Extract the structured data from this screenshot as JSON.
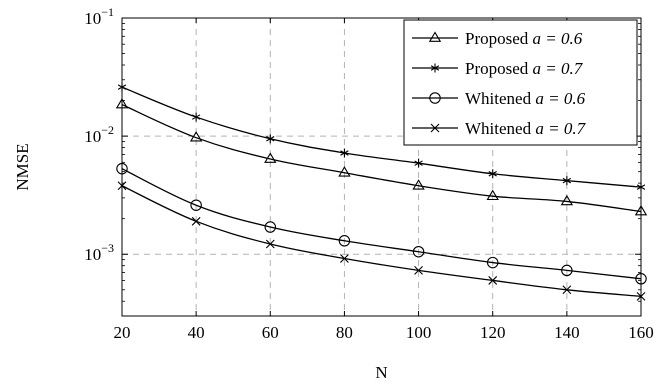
{
  "chart_data": {
    "type": "line",
    "title": "",
    "xlabel": "N",
    "ylabel": "NMSE",
    "x": [
      20,
      40,
      60,
      80,
      100,
      120,
      140,
      160
    ],
    "xlim": [
      20,
      160
    ],
    "ylim": [
      0.0003,
      0.1
    ],
    "yscale": "log",
    "xticks": [
      "20",
      "40",
      "60",
      "80",
      "100",
      "120",
      "140",
      "160"
    ],
    "yticks": [
      {
        "value": 0.1,
        "base": "10",
        "exp": "−1"
      },
      {
        "value": 0.01,
        "base": "10",
        "exp": "−2"
      },
      {
        "value": 0.001,
        "base": "10",
        "exp": "−3"
      }
    ],
    "grid": true,
    "legend_position": "top-right",
    "series": [
      {
        "name": "Proposed",
        "param": "a = 0.6",
        "marker": "triangle",
        "values": [
          0.0185,
          0.0097,
          0.0064,
          0.0049,
          0.0038,
          0.0031,
          0.0028,
          0.0023
        ]
      },
      {
        "name": "Proposed",
        "param": "a = 0.7",
        "marker": "star",
        "values": [
          0.026,
          0.0145,
          0.0095,
          0.0072,
          0.0059,
          0.0048,
          0.0042,
          0.0037
        ]
      },
      {
        "name": "Whitened",
        "param": "a = 0.6",
        "marker": "circle",
        "values": [
          0.0053,
          0.0026,
          0.0017,
          0.0013,
          0.00105,
          0.00085,
          0.00073,
          0.00062
        ]
      },
      {
        "name": "Whitened",
        "param": "a = 0.7",
        "marker": "cross",
        "values": [
          0.0038,
          0.0019,
          0.00122,
          0.00092,
          0.00073,
          0.0006,
          0.0005,
          0.00044
        ]
      }
    ]
  }
}
